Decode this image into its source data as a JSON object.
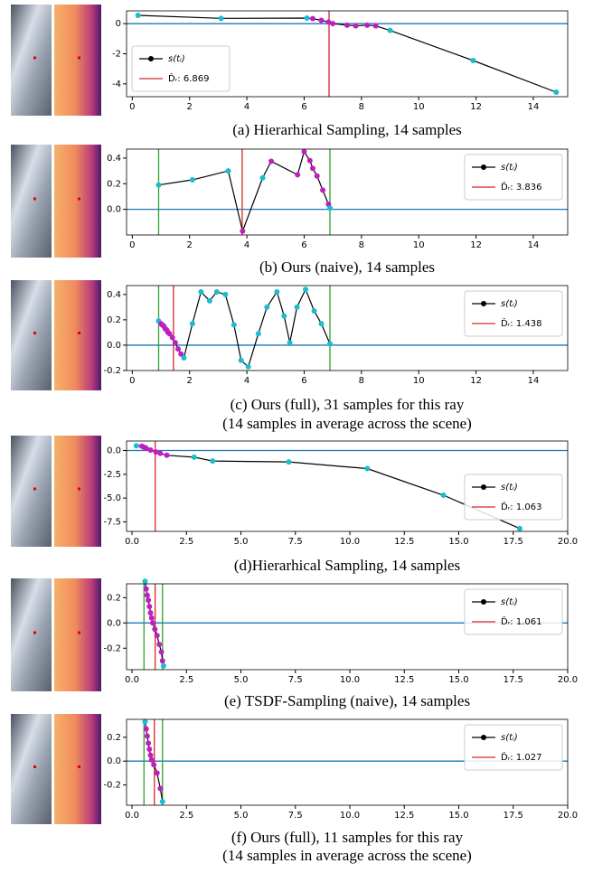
{
  "chart_data": [
    {
      "type": "line",
      "caption": [
        "(a) Hierarhical Sampling, 14 samples"
      ],
      "xlim": [
        -0.2,
        15.2
      ],
      "xticks": [
        0,
        2,
        4,
        6,
        8,
        10,
        12,
        14
      ],
      "ylim": [
        -4.85,
        0.85
      ],
      "yticks": [
        0,
        -2,
        -4
      ],
      "hline": {
        "value": 0,
        "color": "#1f77b4"
      },
      "depth": {
        "value": 6.869,
        "label": "D̂ᵣ: 6.869",
        "color": "#d62728"
      },
      "legend": "lower left",
      "series": [
        {
          "name": "s(tᵢ)",
          "color": "#000000",
          "x": [
            0.2,
            3.1,
            6.1,
            6.3,
            6.6,
            6.85,
            7.0,
            7.5,
            7.8,
            8.2,
            8.5,
            9.0,
            11.9,
            14.8
          ],
          "values": [
            0.55,
            0.35,
            0.37,
            0.33,
            0.22,
            0.1,
            0.0,
            -0.1,
            -0.15,
            -0.1,
            -0.15,
            -0.45,
            -2.45,
            -4.55
          ],
          "marker_colors": [
            "#17becf",
            "#17becf",
            "#17becf",
            "#bf1fbf",
            "#bf1fbf",
            "#bf1fbf",
            "#bf1fbf",
            "#bf1fbf",
            "#bf1fbf",
            "#bf1fbf",
            "#bf1fbf",
            "#17becf",
            "#17becf",
            "#17becf"
          ]
        }
      ]
    },
    {
      "type": "line",
      "caption": [
        "(b) Ours (naive), 14 samples"
      ],
      "xlim": [
        -0.2,
        15.2
      ],
      "xticks": [
        0,
        2,
        4,
        6,
        8,
        10,
        12,
        14
      ],
      "ylim": [
        -0.2,
        0.47
      ],
      "yticks": [
        {
          "value": 0,
          "label": "0.0"
        },
        0.2,
        0.4
      ],
      "hline": {
        "value": 0,
        "color": "#1f77b4"
      },
      "depth": {
        "value": 3.836,
        "label": "D̂ᵣ: 3.836",
        "color": "#d62728"
      },
      "bounds": {
        "values": [
          0.92,
          6.9
        ],
        "color": "#2ca02c"
      },
      "legend": "upper right",
      "series": [
        {
          "name": "s(tᵢ)",
          "color": "#000000",
          "x": [
            0.92,
            2.1,
            3.35,
            3.85,
            4.55,
            4.85,
            5.77,
            6.0,
            6.2,
            6.3,
            6.45,
            6.65,
            6.85,
            6.9
          ],
          "values": [
            0.19,
            0.23,
            0.3,
            -0.17,
            0.245,
            0.375,
            0.27,
            0.45,
            0.38,
            0.32,
            0.26,
            0.15,
            0.04,
            0.01
          ],
          "marker_colors": [
            "#17becf",
            "#17becf",
            "#17becf",
            "#bf1fbf",
            "#17becf",
            "#bf1fbf",
            "#bf1fbf",
            "#bf1fbf",
            "#bf1fbf",
            "#bf1fbf",
            "#bf1fbf",
            "#bf1fbf",
            "#bf1fbf",
            "#17becf"
          ]
        }
      ]
    },
    {
      "type": "line",
      "caption": [
        "(c) Ours (full), 31 samples for this ray",
        "(14 samples in average across the scene)"
      ],
      "xlim": [
        -0.2,
        15.2
      ],
      "xticks": [
        0,
        2,
        4,
        6,
        8,
        10,
        12,
        14
      ],
      "ylim": [
        -0.2,
        0.47
      ],
      "yticks": [
        -0.2,
        {
          "value": 0,
          "label": "0.0"
        },
        0.2,
        0.4
      ],
      "hline": {
        "value": 0,
        "color": "#1f77b4"
      },
      "depth": {
        "value": 1.438,
        "label": "D̂ᵣ: 1.438",
        "color": "#d62728"
      },
      "bounds": {
        "values": [
          0.92,
          6.9
        ],
        "color": "#2ca02c"
      },
      "legend": "upper right",
      "series": [
        {
          "name": "s(tᵢ)",
          "color": "#000000",
          "x": [
            0.92,
            1.0,
            1.05,
            1.1,
            1.15,
            1.2,
            1.25,
            1.3,
            1.4,
            1.5,
            1.6,
            1.7,
            1.8,
            2.1,
            2.4,
            2.7,
            2.95,
            3.25,
            3.55,
            3.8,
            4.05,
            4.4,
            4.7,
            5.05,
            5.3,
            5.5,
            5.75,
            6.05,
            6.35,
            6.6,
            6.9
          ],
          "values": [
            0.19,
            0.17,
            0.16,
            0.15,
            0.13,
            0.12,
            0.1,
            0.09,
            0.06,
            0.02,
            -0.03,
            -0.07,
            -0.1,
            0.17,
            0.42,
            0.35,
            0.42,
            0.4,
            0.16,
            -0.12,
            -0.17,
            0.09,
            0.3,
            0.42,
            0.23,
            0.02,
            0.3,
            0.44,
            0.27,
            0.17,
            0.01
          ],
          "marker_colors": [
            "#17becf",
            "#bf1fbf",
            "#bf1fbf",
            "#bf1fbf",
            "#bf1fbf",
            "#bf1fbf",
            "#bf1fbf",
            "#bf1fbf",
            "#bf1fbf",
            "#bf1fbf",
            "#bf1fbf",
            "#bf1fbf",
            "#17becf",
            "#17becf",
            "#17becf",
            "#17becf",
            "#17becf",
            "#17becf",
            "#17becf",
            "#17becf",
            "#17becf",
            "#17becf",
            "#17becf",
            "#17becf",
            "#17becf",
            "#17becf",
            "#17becf",
            "#17becf",
            "#17becf",
            "#17becf",
            "#17becf"
          ]
        }
      ]
    },
    {
      "type": "line",
      "caption": [
        "(d)Hierarhical Sampling, 14 samples"
      ],
      "xlim": [
        -0.25,
        20
      ],
      "xticks": [
        {
          "value": 0,
          "label": "0.0"
        },
        2.5,
        {
          "value": 5,
          "label": "5.0"
        },
        7.5,
        {
          "value": 10,
          "label": "10.0"
        },
        12.5,
        {
          "value": 15,
          "label": "15.0"
        },
        17.5,
        {
          "value": 20,
          "label": "20.0"
        }
      ],
      "ylim": [
        -8.5,
        1.0
      ],
      "yticks": [
        {
          "value": 0,
          "label": "0.0"
        },
        -2.5,
        {
          "value": -5,
          "label": "-5.0"
        },
        -7.5
      ],
      "hline": {
        "value": 0,
        "color": "#1f77b4"
      },
      "depth": {
        "value": 1.063,
        "label": "D̂ᵣ: 1.063",
        "color": "#d62728"
      },
      "legend": "center right",
      "series": [
        {
          "name": "s(tᵢ)",
          "color": "#000000",
          "x": [
            0.2,
            0.45,
            0.55,
            0.65,
            0.85,
            1.1,
            1.3,
            1.6,
            2.85,
            3.7,
            7.2,
            10.8,
            14.3,
            17.8
          ],
          "values": [
            0.5,
            0.45,
            0.35,
            0.25,
            0.05,
            -0.15,
            -0.3,
            -0.5,
            -0.7,
            -1.1,
            -1.2,
            -1.9,
            -4.7,
            -8.2
          ],
          "marker_colors": [
            "#17becf",
            "#bf1fbf",
            "#bf1fbf",
            "#bf1fbf",
            "#bf1fbf",
            "#bf1fbf",
            "#bf1fbf",
            "#bf1fbf",
            "#17becf",
            "#17becf",
            "#17becf",
            "#17becf",
            "#17becf",
            "#17becf"
          ]
        }
      ]
    },
    {
      "type": "line",
      "caption": [
        "(e) TSDF-Sampling (naive), 14 samples"
      ],
      "xlim": [
        -0.25,
        20
      ],
      "xticks": [
        {
          "value": 0,
          "label": "0.0"
        },
        2.5,
        {
          "value": 5,
          "label": "5.0"
        },
        7.5,
        {
          "value": 10,
          "label": "10.0"
        },
        12.5,
        {
          "value": 15,
          "label": "15.0"
        },
        17.5,
        {
          "value": 20,
          "label": "20.0"
        }
      ],
      "ylim": [
        -0.37,
        0.31
      ],
      "yticks": [
        -0.2,
        {
          "value": 0,
          "label": "0.0"
        },
        0.2
      ],
      "hline": {
        "value": 0,
        "color": "#1f77b4"
      },
      "depth": {
        "value": 1.061,
        "label": "D̂ᵣ: 1.061",
        "color": "#d62728"
      },
      "bounds": {
        "values": [
          0.55,
          1.4
        ],
        "color": "#2ca02c"
      },
      "legend": "upper right",
      "series": [
        {
          "name": "s(tᵢ)",
          "color": "#000000",
          "x": [
            0.6,
            0.65,
            0.7,
            0.75,
            0.8,
            0.85,
            0.9,
            0.95,
            1.05,
            1.15,
            1.25,
            1.35,
            1.4,
            1.45
          ],
          "values": [
            0.33,
            0.27,
            0.22,
            0.18,
            0.13,
            0.08,
            0.04,
            0.0,
            -0.05,
            -0.1,
            -0.17,
            -0.23,
            -0.3,
            -0.34
          ],
          "marker_colors": [
            "#17becf",
            "#bf1fbf",
            "#bf1fbf",
            "#bf1fbf",
            "#bf1fbf",
            "#bf1fbf",
            "#bf1fbf",
            "#bf1fbf",
            "#bf1fbf",
            "#bf1fbf",
            "#bf1fbf",
            "#bf1fbf",
            "#bf1fbf",
            "#17becf"
          ]
        }
      ]
    },
    {
      "type": "line",
      "caption": [
        "(f) Ours (full), 11 samples for this ray",
        "(14 samples in average across the scene)"
      ],
      "xlim": [
        -0.25,
        20
      ],
      "xticks": [
        {
          "value": 0,
          "label": "0.0"
        },
        2.5,
        {
          "value": 5,
          "label": "5.0"
        },
        7.5,
        {
          "value": 10,
          "label": "10.0"
        },
        12.5,
        {
          "value": 15,
          "label": "15.0"
        },
        17.5,
        {
          "value": 20,
          "label": "20.0"
        }
      ],
      "ylim": [
        -0.37,
        0.35
      ],
      "yticks": [
        -0.2,
        {
          "value": 0,
          "label": "0.0"
        },
        0.2
      ],
      "hline": {
        "value": 0,
        "color": "#1f77b4"
      },
      "depth": {
        "value": 1.027,
        "label": "D̂ᵣ: 1.027",
        "color": "#d62728"
      },
      "bounds": {
        "values": [
          0.55,
          1.4
        ],
        "color": "#2ca02c"
      },
      "legend": "upper right",
      "series": [
        {
          "name": "s(tᵢ)",
          "color": "#000000",
          "x": [
            0.6,
            0.65,
            0.7,
            0.75,
            0.8,
            0.85,
            0.9,
            1.0,
            1.15,
            1.3,
            1.4
          ],
          "values": [
            0.33,
            0.27,
            0.21,
            0.15,
            0.1,
            0.05,
            0.01,
            -0.03,
            -0.1,
            -0.23,
            -0.34
          ],
          "marker_colors": [
            "#17becf",
            "#bf1fbf",
            "#bf1fbf",
            "#bf1fbf",
            "#bf1fbf",
            "#bf1fbf",
            "#bf1fbf",
            "#bf1fbf",
            "#bf1fbf",
            "#bf1fbf",
            "#17becf"
          ]
        }
      ]
    }
  ]
}
